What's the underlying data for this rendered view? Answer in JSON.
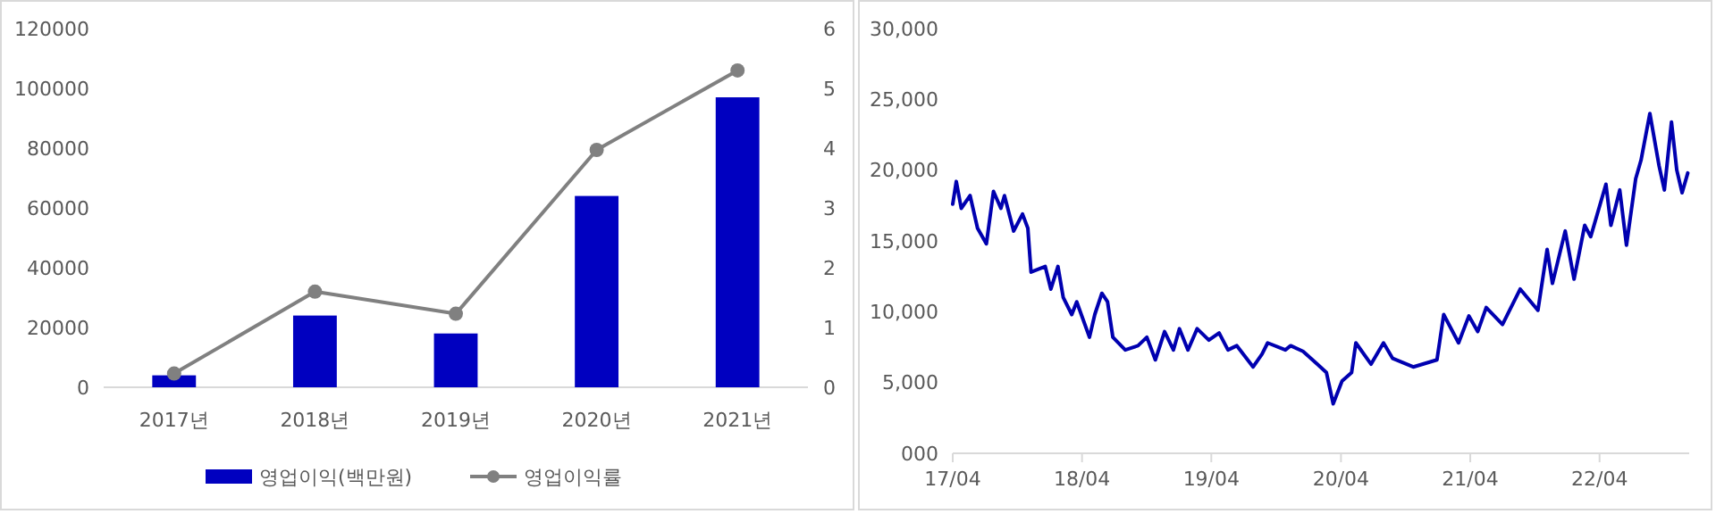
{
  "chart_data": [
    {
      "type": "bar",
      "categories": [
        "2017년",
        "2018년",
        "2019년",
        "2020년",
        "2021년"
      ],
      "series": [
        {
          "name": "영업이익(백만원)",
          "color": "#0000c0",
          "values": [
            4000,
            24000,
            18000,
            64000,
            97000
          ]
        },
        {
          "name": "영업이익률",
          "type": "line",
          "axis": "y2",
          "color": "#808080",
          "values": [
            0.23,
            1.6,
            1.23,
            3.97,
            5.3
          ]
        }
      ],
      "ylim": [
        0,
        120000
      ],
      "yticks": [
        0,
        20000,
        40000,
        60000,
        80000,
        100000,
        120000
      ],
      "y2lim": [
        0,
        6
      ],
      "y2ticks": [
        0,
        1,
        2,
        3,
        4,
        5,
        6
      ],
      "marker": "circle",
      "legend": "bottom"
    },
    {
      "type": "line",
      "x": [
        "2017-04-01",
        "2017-04-11",
        "2017-04-25",
        "2017-05-20",
        "2017-06-10",
        "2017-07-05",
        "2017-07-25",
        "2017-08-15",
        "2017-08-25",
        "2017-09-20",
        "2017-10-15",
        "2017-10-30",
        "2017-11-08",
        "2017-12-18",
        "2018-01-03",
        "2018-01-23",
        "2018-02-07",
        "2018-03-03",
        "2018-03-17",
        "2018-04-22",
        "2018-05-07",
        "2018-05-27",
        "2018-06-12",
        "2018-06-27",
        "2018-08-01",
        "2018-09-06",
        "2018-10-01",
        "2018-10-25",
        "2018-11-20",
        "2018-12-15",
        "2019-01-01",
        "2019-01-25",
        "2019-02-20",
        "2019-03-25",
        "2019-04-23",
        "2019-05-18",
        "2019-06-12",
        "2019-07-28",
        "2019-08-22",
        "2019-09-07",
        "2019-10-27",
        "2019-11-11",
        "2019-12-16",
        "2020-01-25",
        "2020-02-20",
        "2020-03-10",
        "2020-04-04",
        "2020-05-01",
        "2020-05-13",
        "2020-06-25",
        "2020-07-30",
        "2020-08-25",
        "2020-10-22",
        "2020-12-28",
        "2021-01-16",
        "2021-02-27",
        "2021-03-28",
        "2021-04-22",
        "2021-05-16",
        "2021-07-01",
        "2021-08-20",
        "2021-10-09",
        "2021-11-04",
        "2021-11-19",
        "2021-12-25",
        "2022-01-19",
        "2022-02-18",
        "2022-03-07",
        "2022-04-19",
        "2022-05-03",
        "2022-05-28",
        "2022-06-16",
        "2022-07-12",
        "2022-07-27",
        "2022-08-21",
        "2022-09-16",
        "2022-10-01",
        "2022-10-21",
        "2022-11-05",
        "2022-11-20",
        "2022-12-06"
      ],
      "series": [
        {
          "color": "#0000b0",
          "values": [
            17600,
            19200,
            17300,
            18200,
            15900,
            14800,
            18500,
            17300,
            18200,
            15700,
            16900,
            15900,
            12800,
            13200,
            11600,
            13200,
            11000,
            9800,
            10700,
            8200,
            9800,
            11300,
            10700,
            8200,
            7300,
            7600,
            8200,
            6600,
            8600,
            7300,
            8800,
            7300,
            8800,
            8000,
            8500,
            7300,
            7600,
            6100,
            7000,
            7800,
            7300,
            7600,
            7200,
            6300,
            5700,
            3500,
            5100,
            5700,
            7800,
            6300,
            7800,
            6700,
            6100,
            6600,
            9800,
            7800,
            9700,
            8600,
            10300,
            9100,
            11600,
            10100,
            14400,
            12000,
            15700,
            12300,
            16100,
            15300,
            19000,
            16100,
            18600,
            14700,
            19400,
            20700,
            24000,
            20300,
            18600,
            23400,
            20000,
            18400,
            19800
          ]
        }
      ],
      "xlim": [
        "2017-04-01",
        "2022-12-10"
      ],
      "xticks": [
        {
          "value": "2017-04-01",
          "label": "17/04"
        },
        {
          "value": "2018-04-01",
          "label": "18/04"
        },
        {
          "value": "2019-04-01",
          "label": "19/04"
        },
        {
          "value": "2020-04-01",
          "label": "20/04"
        },
        {
          "value": "2021-04-01",
          "label": "21/04"
        },
        {
          "value": "2022-04-01",
          "label": "22/04"
        }
      ],
      "ylim": [
        0,
        30000
      ],
      "yticks": [
        {
          "value": 0,
          "label": "000"
        },
        {
          "value": 5000,
          "label": "5,000"
        },
        {
          "value": 10000,
          "label": "10,000"
        },
        {
          "value": 15000,
          "label": "15,000"
        },
        {
          "value": 20000,
          "label": "20,000"
        },
        {
          "value": 25000,
          "label": "25,000"
        },
        {
          "value": 30000,
          "label": "30,000"
        }
      ]
    }
  ]
}
